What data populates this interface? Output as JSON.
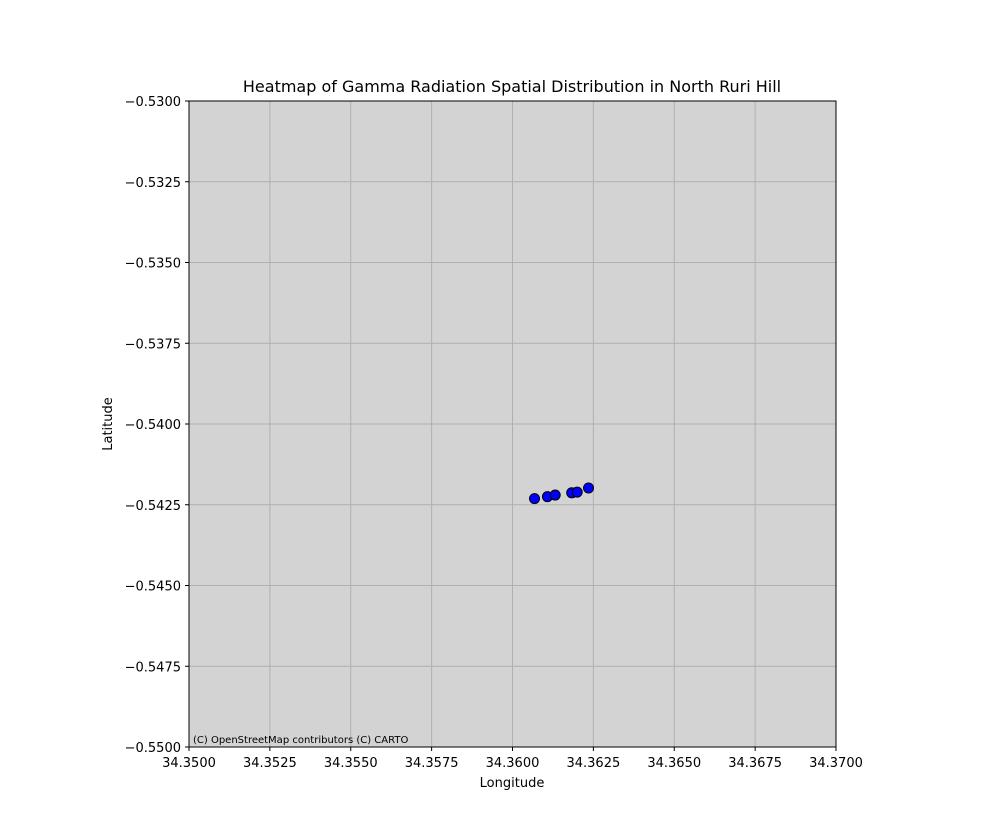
{
  "chart_data": {
    "type": "scatter",
    "title": "Heatmap of Gamma Radiation Spatial Distribution in North Ruri Hill",
    "xlabel": "Longitude",
    "ylabel": "Latitude",
    "xlim": [
      34.35,
      34.37
    ],
    "ylim": [
      -0.55,
      -0.53
    ],
    "x_ticks": [
      "34.3500",
      "34.3525",
      "34.3550",
      "34.3575",
      "34.3600",
      "34.3625",
      "34.3650",
      "34.3675",
      "34.3700"
    ],
    "y_ticks": [
      "−0.5300",
      "−0.5325",
      "−0.5350",
      "−0.5375",
      "−0.5400",
      "−0.5425",
      "−0.5450",
      "−0.5475",
      "−0.5500"
    ],
    "grid": true,
    "background_color": "#d3d3d3",
    "grid_color": "#b0b0b0",
    "point_color": "#0000ff",
    "point_edge_color": "#000000",
    "attribution": "(C) OpenStreetMap contributors (C) CARTO",
    "points": [
      {
        "x": 34.36068,
        "y": -0.54231
      },
      {
        "x": 34.36108,
        "y": -0.54225
      },
      {
        "x": 34.36132,
        "y": -0.5422
      },
      {
        "x": 34.36183,
        "y": -0.54213
      },
      {
        "x": 34.362,
        "y": -0.54211
      },
      {
        "x": 34.36235,
        "y": -0.54198
      }
    ]
  }
}
